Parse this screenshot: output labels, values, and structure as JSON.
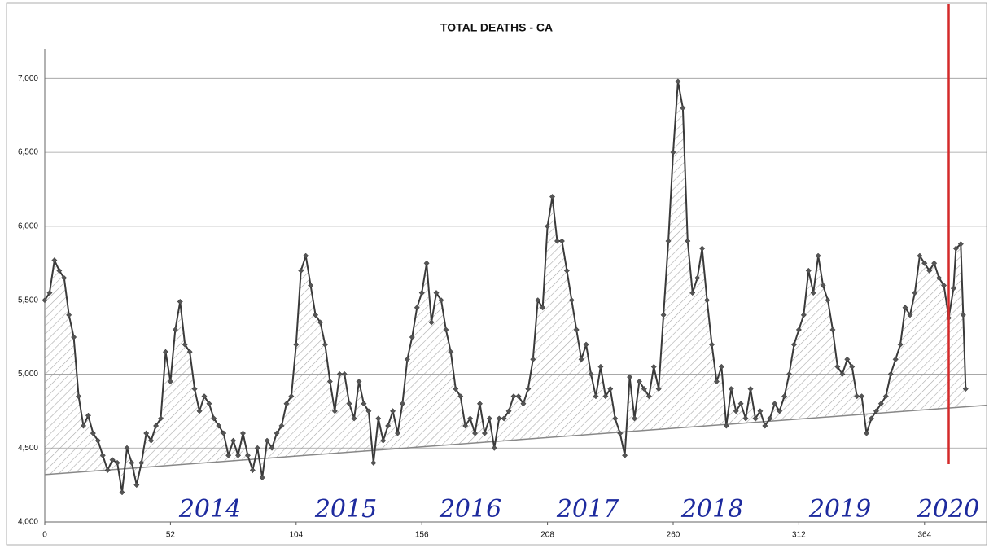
{
  "chart_data": {
    "type": "line",
    "title": "TOTAL DEATHS - CA",
    "x": [
      0,
      2,
      4,
      6,
      8,
      10,
      12,
      14,
      16,
      18,
      20,
      22,
      24,
      26,
      28,
      30,
      32,
      34,
      36,
      38,
      40,
      42,
      44,
      46,
      48,
      50,
      52,
      54,
      56,
      58,
      60,
      62,
      64,
      66,
      68,
      70,
      72,
      74,
      76,
      78,
      80,
      82,
      84,
      86,
      88,
      90,
      92,
      94,
      96,
      98,
      100,
      102,
      104,
      106,
      108,
      110,
      112,
      114,
      116,
      118,
      120,
      122,
      124,
      126,
      128,
      130,
      132,
      134,
      136,
      138,
      140,
      142,
      144,
      146,
      148,
      150,
      152,
      154,
      156,
      158,
      160,
      162,
      164,
      166,
      168,
      170,
      172,
      174,
      176,
      178,
      180,
      182,
      184,
      186,
      188,
      190,
      192,
      194,
      196,
      198,
      200,
      202,
      204,
      206,
      208,
      210,
      212,
      214,
      216,
      218,
      220,
      222,
      224,
      226,
      228,
      230,
      232,
      234,
      236,
      238,
      240,
      242,
      244,
      246,
      248,
      250,
      252,
      254,
      256,
      258,
      260,
      262,
      264,
      266,
      268,
      270,
      272,
      274,
      276,
      278,
      280,
      282,
      284,
      286,
      288,
      290,
      292,
      294,
      296,
      298,
      300,
      302,
      304,
      306,
      308,
      310,
      312,
      314,
      316,
      318,
      320,
      322,
      324,
      326,
      328,
      330,
      332,
      334,
      336,
      338,
      340,
      342,
      344,
      346,
      348,
      350,
      352,
      354,
      356,
      358,
      360,
      362,
      364,
      366,
      368,
      370,
      372,
      374,
      376,
      377,
      379,
      380,
      381
    ],
    "series": [
      {
        "color": "#3a3a3a",
        "values": [
          5500,
          5550,
          5770,
          5700,
          5650,
          5400,
          5250,
          4850,
          4650,
          4720,
          4600,
          4550,
          4450,
          4350,
          4420,
          4400,
          4200,
          4500,
          4400,
          4250,
          4400,
          4600,
          4550,
          4650,
          4700,
          5150,
          4950,
          5300,
          5490,
          5200,
          5150,
          4900,
          4750,
          4850,
          4800,
          4700,
          4650,
          4600,
          4450,
          4550,
          4450,
          4600,
          4450,
          4350,
          4500,
          4300,
          4550,
          4500,
          4600,
          4650,
          4800,
          4850,
          5200,
          5700,
          5800,
          5600,
          5400,
          5350,
          5200,
          4950,
          4750,
          5000,
          5000,
          4800,
          4700,
          4950,
          4800,
          4750,
          4400,
          4700,
          4550,
          4650,
          4750,
          4600,
          4800,
          5100,
          5250,
          5450,
          5550,
          5750,
          5350,
          5550,
          5500,
          5300,
          5150,
          4900,
          4850,
          4650,
          4700,
          4600,
          4800,
          4600,
          4700,
          4500,
          4700,
          4700,
          4750,
          4850,
          4850,
          4800,
          4900,
          5100,
          5500,
          5450,
          6000,
          6200,
          5900,
          5900,
          5700,
          5500,
          5300,
          5100,
          5200,
          5000,
          4850,
          5050,
          4850,
          4900,
          4700,
          4600,
          4450,
          4980,
          4700,
          4950,
          4900,
          4850,
          5050,
          4900,
          5400,
          5900,
          6500,
          6980,
          6800,
          5900,
          5550,
          5650,
          5850,
          5500,
          5200,
          4950,
          5050,
          4650,
          4900,
          4750,
          4800,
          4700,
          4900,
          4700,
          4750,
          4650,
          4700,
          4800,
          4750,
          4850,
          5000,
          5200,
          5300,
          5400,
          5700,
          5550,
          5800,
          5600,
          5500,
          5300,
          5050,
          5000,
          5100,
          5050,
          4850,
          4850,
          4600,
          4700,
          4750,
          4800,
          4850,
          5000,
          5100,
          5200,
          5450,
          5400,
          5550,
          5800,
          5750,
          5700,
          5750,
          5650,
          5600,
          5380,
          5580,
          5850,
          5880,
          5400,
          4900
        ]
      }
    ],
    "trend": {
      "color": "#888888",
      "x": [
        0,
        390
      ],
      "values": [
        4320,
        4790
      ]
    },
    "reference_line": {
      "x": 374,
      "color": "#d42a2a"
    },
    "annotations": [
      "2014",
      "2015",
      "2016",
      "2017",
      "2018",
      "2019",
      "2020"
    ],
    "xlim": [
      0,
      390
    ],
    "ylim": [
      4000,
      7200
    ],
    "xticks": [
      0,
      52,
      104,
      156,
      208,
      260,
      312,
      364
    ],
    "yticks": [
      {
        "value": 4000,
        "label": "4,000"
      },
      {
        "value": 4500,
        "label": "4,500"
      },
      {
        "value": 5000,
        "label": "5,000"
      },
      {
        "value": 5500,
        "label": "5,500"
      },
      {
        "value": 6000,
        "label": "6,000"
      },
      {
        "value": 6500,
        "label": "6,500"
      },
      {
        "value": 7000,
        "label": "7,000"
      }
    ],
    "grid": true
  }
}
